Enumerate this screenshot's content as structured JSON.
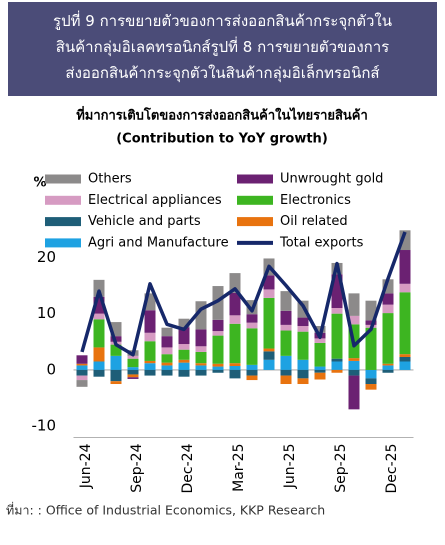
{
  "header": {
    "lines": [
      "รูปที่ 9 การขยายตัวของการส่งออกสินค้ากระจุกตัวใน",
      "สินค้ากลุ่มอิเลคทรอนิกส์รูปที่ 8 การขยายตัวของการ",
      "ส่งออกสินค้ากระจุกตัวในสินค้ากลุ่มอิเล็กทรอนิกส์"
    ]
  },
  "chart_data": {
    "type": "bar",
    "stacked": true,
    "title": "ที่มาการเติบโตของการส่งออกสินค้าในไทยรายสินค้า",
    "subtitle": "(Contribution to YoY growth)",
    "y_label": "%",
    "categories": [
      "Jun-24",
      null,
      null,
      "Sep-24",
      null,
      null,
      "Dec-24",
      null,
      null,
      "Mar-25",
      null,
      null,
      "Jun-25",
      null,
      null,
      "Sep-25",
      null,
      null,
      "Dec-25",
      null
    ],
    "ylim": [
      -12,
      24.5
    ],
    "yticks": [
      -10,
      0,
      10,
      20
    ],
    "grid": false,
    "series": [
      {
        "name": "Others",
        "color": "#8c8a8a",
        "type": "bar",
        "values": [
          -1.2,
          3.0,
          2.5,
          1.0,
          3.0,
          1.5,
          1.5,
          5.0,
          6.0,
          3.5,
          2.5,
          3.0,
          3.5,
          3.0,
          1.2,
          2.0,
          4.0,
          3.5,
          2.5,
          3.5
        ]
      },
      {
        "name": "Unwrought gold",
        "color": "#6b2172",
        "type": "bar",
        "values": [
          1.5,
          3.0,
          1.0,
          -0.3,
          4.0,
          2.0,
          3.0,
          3.0,
          2.0,
          4.0,
          1.5,
          2.5,
          2.5,
          1.5,
          1.0,
          6.0,
          -6.0,
          0.8,
          2.0,
          6.0
        ]
      },
      {
        "name": "Electrical appliances",
        "color": "#d69bc2",
        "type": "bar",
        "values": [
          -0.8,
          1.0,
          0.5,
          0.5,
          1.5,
          1.2,
          1.0,
          1.0,
          0.8,
          1.5,
          1.0,
          1.5,
          1.0,
          1.0,
          0.8,
          1.0,
          1.5,
          0.5,
          1.5,
          1.5
        ]
      },
      {
        "name": "Electronics",
        "color": "#3db521",
        "type": "bar",
        "values": [
          0,
          5.0,
          2.0,
          1.5,
          3.5,
          1.5,
          1.8,
          2.0,
          5.0,
          7.0,
          6.5,
          9.0,
          4.5,
          5.0,
          4.2,
          8.0,
          6.0,
          7.5,
          9.0,
          11.0
        ]
      },
      {
        "name": "Vehicle and parts",
        "color": "#1e5e78",
        "type": "bar",
        "values": [
          -1.0,
          -1.2,
          -2.0,
          -0.8,
          -1.0,
          -1.0,
          -1.2,
          -1.0,
          -0.5,
          -1.5,
          -1.0,
          1.5,
          -1.0,
          -1.5,
          -0.5,
          0.5,
          -1.0,
          -1.0,
          -0.5,
          0.8
        ]
      },
      {
        "name": "Oil related",
        "color": "#e8730f",
        "type": "bar",
        "values": [
          0.3,
          2.5,
          -0.5,
          -0.5,
          0.4,
          0.5,
          0.5,
          0.4,
          0.5,
          0.5,
          -0.8,
          0.5,
          -1.5,
          -1.0,
          -1.2,
          -0.5,
          0.5,
          -1.0,
          0.3,
          0.5
        ]
      },
      {
        "name": "Agri and Manufacture",
        "color": "#1ea2e2",
        "type": "bar",
        "values": [
          0.8,
          1.5,
          2.5,
          0.5,
          1.2,
          0.8,
          1.3,
          0.8,
          0.6,
          0.7,
          0.9,
          1.8,
          2.5,
          1.8,
          0.6,
          1.5,
          1.6,
          -1.5,
          0.8,
          1.5
        ]
      },
      {
        "name": "Total exports",
        "color": "#16286a",
        "type": "line",
        "values": [
          3.2,
          14.0,
          4.5,
          2.7,
          15.3,
          8.1,
          7.2,
          10.8,
          12.3,
          14.4,
          10.5,
          18.4,
          15.0,
          11.4,
          5.8,
          18.9,
          4.3,
          7.2,
          16.2,
          24.5
        ]
      }
    ]
  },
  "source": "ที่มา: : Office of Industrial Economics, KKP Research"
}
